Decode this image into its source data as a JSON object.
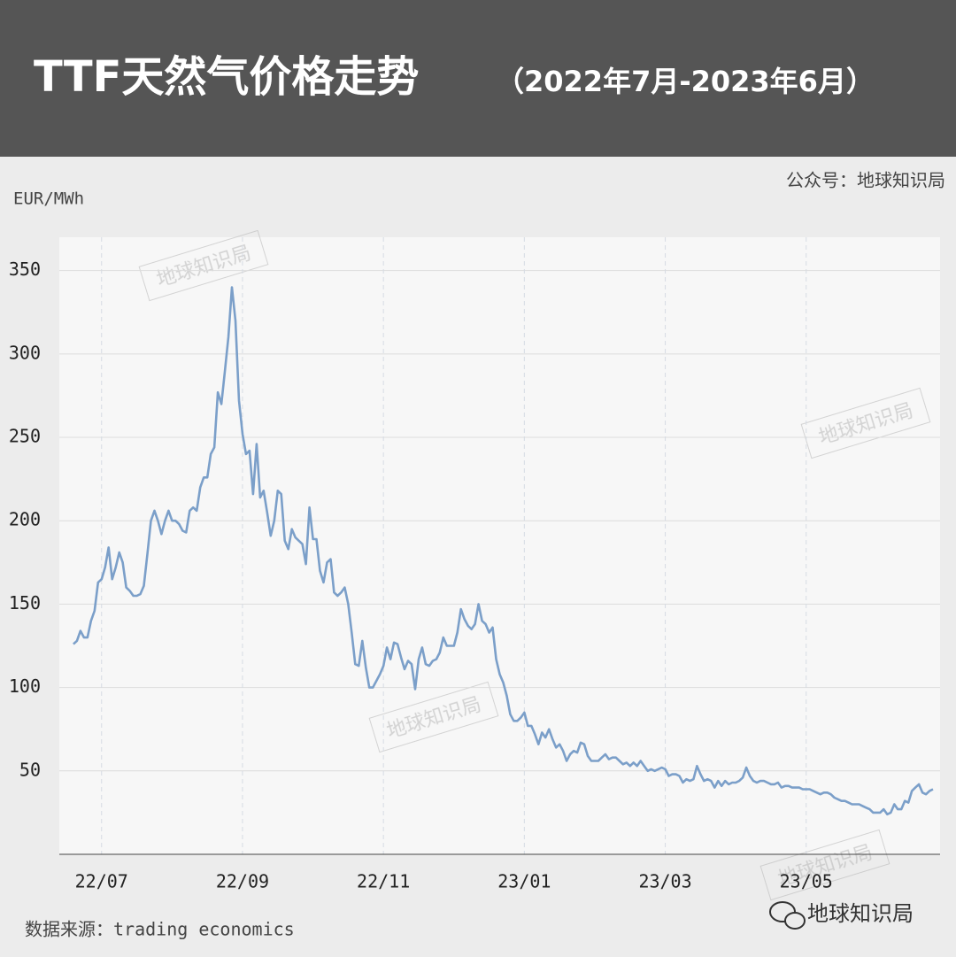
{
  "chart_data": {
    "type": "line",
    "title": "TTF天然气价格走势",
    "subtitle": "（2022年7月-2023年6月）",
    "credit": "公众号：地球知识局",
    "y_label": "EUR/MWh",
    "source": "数据来源：trading economics",
    "watermark": "地球知识局",
    "color": "#7b9fc9",
    "grid": true,
    "xlim": [
      6.4,
      18.9
    ],
    "xticks": [
      {
        "value": 7,
        "label": "22/07"
      },
      {
        "value": 9,
        "label": "22/09"
      },
      {
        "value": 11,
        "label": "22/11"
      },
      {
        "value": 13,
        "label": "23/01"
      },
      {
        "value": 15,
        "label": "23/03"
      },
      {
        "value": 17,
        "label": "23/05"
      }
    ],
    "ylim": [
      0,
      370
    ],
    "yticks": [
      50,
      100,
      150,
      200,
      250,
      300,
      350
    ],
    "x": [
      6.6,
      6.65,
      6.7,
      6.75,
      6.8,
      6.85,
      6.9,
      6.95,
      7,
      7.05,
      7.1,
      7.15,
      7.2,
      7.25,
      7.3,
      7.35,
      7.4,
      7.45,
      7.5,
      7.55,
      7.6,
      7.65,
      7.7,
      7.75,
      7.8,
      7.85,
      7.9,
      7.95,
      8,
      8.05,
      8.1,
      8.15,
      8.2,
      8.25,
      8.3,
      8.35,
      8.4,
      8.45,
      8.5,
      8.55,
      8.6,
      8.65,
      8.7,
      8.75,
      8.8,
      8.85,
      8.9,
      8.95,
      9,
      9.05,
      9.1,
      9.15,
      9.2,
      9.25,
      9.3,
      9.35,
      9.4,
      9.45,
      9.5,
      9.55,
      9.6,
      9.65,
      9.7,
      9.75,
      9.8,
      9.85,
      9.9,
      9.95,
      10,
      10.05,
      10.1,
      10.15,
      10.2,
      10.25,
      10.3,
      10.35,
      10.4,
      10.45,
      10.5,
      10.55,
      10.6,
      10.65,
      10.7,
      10.75,
      10.8,
      10.85,
      10.9,
      10.95,
      11,
      11.05,
      11.1,
      11.15,
      11.2,
      11.25,
      11.3,
      11.35,
      11.4,
      11.45,
      11.5,
      11.55,
      11.6,
      11.65,
      11.7,
      11.75,
      11.8,
      11.85,
      11.9,
      11.95,
      12,
      12.05,
      12.1,
      12.15,
      12.2,
      12.25,
      12.3,
      12.35,
      12.4,
      12.45,
      12.5,
      12.55,
      12.6,
      12.65,
      12.7,
      12.75,
      12.8,
      12.85,
      12.9,
      12.95,
      13,
      13.05,
      13.1,
      13.15,
      13.2,
      13.25,
      13.3,
      13.35,
      13.4,
      13.45,
      13.5,
      13.55,
      13.6,
      13.65,
      13.7,
      13.75,
      13.8,
      13.85,
      13.9,
      13.95,
      14,
      14.05,
      14.1,
      14.15,
      14.2,
      14.25,
      14.3,
      14.35,
      14.4,
      14.45,
      14.5,
      14.55,
      14.6,
      14.65,
      14.7,
      14.75,
      14.8,
      14.85,
      14.9,
      14.95,
      15,
      15.05,
      15.1,
      15.15,
      15.2,
      15.25,
      15.3,
      15.35,
      15.4,
      15.45,
      15.5,
      15.55,
      15.6,
      15.65,
      15.7,
      15.75,
      15.8,
      15.85,
      15.9,
      15.95,
      16,
      16.05,
      16.1,
      16.15,
      16.2,
      16.25,
      16.3,
      16.35,
      16.4,
      16.45,
      16.5,
      16.55,
      16.6,
      16.65,
      16.7,
      16.75,
      16.8,
      16.85,
      16.9,
      16.95,
      17,
      17.05,
      17.1,
      17.15,
      17.2,
      17.25,
      17.3,
      17.35,
      17.4,
      17.45,
      17.5,
      17.55,
      17.6,
      17.65,
      17.7,
      17.75,
      17.8,
      17.85,
      17.9,
      17.95,
      18,
      18.05,
      18.1,
      18.15,
      18.2,
      18.25,
      18.3,
      18.35,
      18.4,
      18.45,
      18.5,
      18.55,
      18.6,
      18.65,
      18.7,
      18.75,
      18.8
    ],
    "values": [
      126,
      128,
      134,
      130,
      130,
      140,
      146,
      163,
      165,
      172,
      184,
      165,
      172,
      181,
      175,
      160,
      158,
      155,
      155,
      156,
      161,
      180,
      200,
      206,
      200,
      192,
      200,
      206,
      200,
      200,
      198,
      194,
      193,
      206,
      208,
      206,
      220,
      226,
      226,
      240,
      244,
      277,
      270,
      290,
      310,
      340,
      320,
      272,
      252,
      240,
      242,
      216,
      246,
      214,
      218,
      205,
      191,
      200,
      218,
      216,
      188,
      183,
      195,
      190,
      188,
      186,
      174,
      208,
      189,
      189,
      170,
      163,
      175,
      177,
      157,
      155,
      157,
      160,
      150,
      133,
      114,
      113,
      128,
      112,
      100,
      100,
      104,
      108,
      113,
      124,
      117,
      127,
      126,
      118,
      111,
      116,
      114,
      99,
      117,
      124,
      114,
      113,
      116,
      117,
      121,
      130,
      125,
      125,
      125,
      133,
      147,
      141,
      137,
      135,
      138,
      150,
      140,
      138,
      133,
      136,
      117,
      108,
      103,
      95,
      84,
      80,
      80,
      82,
      85,
      77,
      77,
      72,
      66,
      73,
      70,
      75,
      69,
      64,
      66,
      62,
      56,
      60,
      62,
      61,
      67,
      66,
      59,
      56,
      56,
      56,
      58,
      60,
      57,
      58,
      58,
      56,
      54,
      55,
      53,
      55,
      53,
      56,
      53,
      50,
      51,
      50,
      51,
      52,
      51,
      47,
      48,
      48,
      47,
      43,
      45,
      44,
      45,
      53,
      48,
      44,
      45,
      44,
      40,
      44,
      41,
      44,
      42,
      43,
      43,
      44,
      46,
      52,
      47,
      44,
      43,
      44,
      44,
      43,
      42,
      42,
      43,
      40,
      41,
      41,
      40,
      40,
      40,
      39,
      39,
      39,
      38,
      37,
      36,
      37,
      37,
      36,
      34,
      33,
      32,
      32,
      31,
      30,
      30,
      30,
      29,
      28,
      27,
      25,
      25,
      25,
      27,
      24,
      25,
      30,
      27,
      27,
      32,
      31,
      38,
      40,
      42,
      37,
      36,
      38,
      39
    ]
  }
}
